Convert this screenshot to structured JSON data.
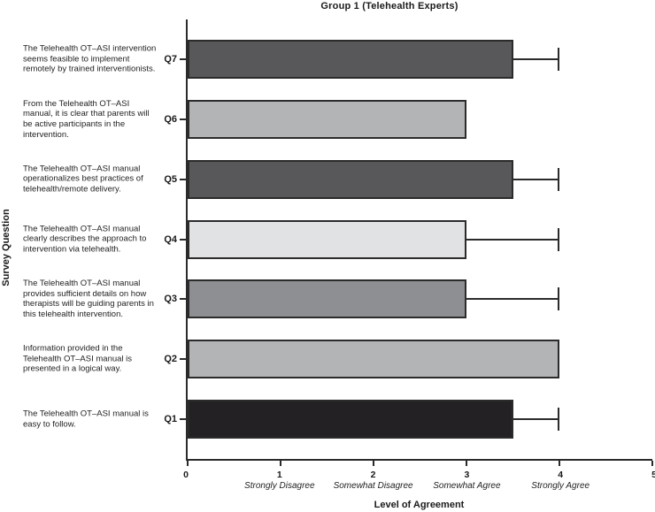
{
  "chart_data": {
    "type": "bar",
    "orientation": "horizontal",
    "title": "Group 1 (Telehealth Experts)",
    "xlabel": "Level of Agreement",
    "ylabel": "Survey Question",
    "xlim": [
      0,
      5
    ],
    "grid": false,
    "legend": null,
    "x_ticks": [
      {
        "value": 0,
        "label": "0",
        "desc": ""
      },
      {
        "value": 1,
        "label": "1",
        "desc": "Strongly Disagree"
      },
      {
        "value": 2,
        "label": "2",
        "desc": "Somewhat Disagree"
      },
      {
        "value": 3,
        "label": "3",
        "desc": "Somewhat Agree"
      },
      {
        "value": 4,
        "label": "4",
        "desc": "Strongly Agree"
      },
      {
        "value": 5,
        "label": "5",
        "desc": ""
      }
    ],
    "bars": [
      {
        "category": "Q7",
        "question": "The Telehealth OT–ASI intervention seems feasible to implement remotely by trained interventionists.",
        "value": 3.5,
        "error_high": 4.0,
        "color": "#58585a"
      },
      {
        "category": "Q6",
        "question": "From the Telehealth OT–ASI manual, it is clear that parents will be active participants in the intervention.",
        "value": 3.0,
        "error_high": null,
        "color": "#b3b4b6"
      },
      {
        "category": "Q5",
        "question": "The Telehealth OT–ASI manual operationalizes best practices of telehealth/remote delivery.",
        "value": 3.5,
        "error_high": 4.0,
        "color": "#58585a"
      },
      {
        "category": "Q4",
        "question": "The Telehealth OT–ASI manual clearly describes the approach to intervention via telehealth.",
        "value": 3.0,
        "error_high": 4.0,
        "color": "#e1e2e4"
      },
      {
        "category": "Q3",
        "question": "The Telehealth OT–ASI manual provides sufficient details on how therapists will be guiding parents in this telehealth intervention.",
        "value": 3.0,
        "error_high": 4.0,
        "color": "#8d8f92"
      },
      {
        "category": "Q2",
        "question": "Information provided in the Telehealth OT–ASI manual is presented in a logical way.",
        "value": 4.0,
        "error_high": null,
        "color": "#b3b4b6"
      },
      {
        "category": "Q1",
        "question": "The Telehealth OT–ASI manual is easy to follow.",
        "value": 3.5,
        "error_high": 4.0,
        "color": "#232124"
      }
    ],
    "colors": {
      "axis": "#2b2b2b",
      "bar_border": "#2b2b2b",
      "text": "#1a1a1a"
    }
  }
}
